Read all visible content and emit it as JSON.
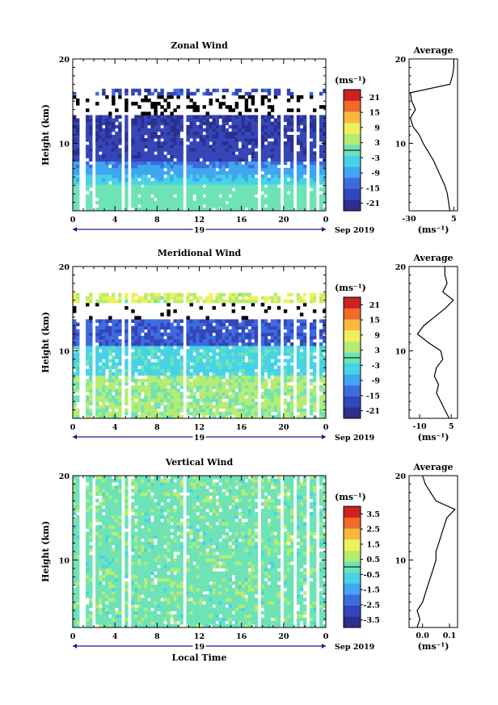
{
  "figure": {
    "date_label": "Sep 2019",
    "day_label": "19",
    "xlabel": "Local Time",
    "time_ticks": [
      "0",
      "4",
      "8",
      "12",
      "16",
      "20",
      "0"
    ],
    "height_ticks": [
      "20",
      "10"
    ],
    "ylabel": "Height (km)",
    "profile_title": "Average",
    "unit_label": "(ms⁻¹)"
  },
  "chart_data": [
    {
      "type": "heatmap",
      "title": "Zonal Wind",
      "xlabel": "",
      "ylabel": "Height (km)",
      "x_range_hours": [
        0,
        24
      ],
      "ylim_km": [
        2,
        20
      ],
      "colorbar": {
        "unit": "(ms⁻¹)",
        "ticks": [
          21,
          15,
          9,
          3,
          -3,
          -9,
          -15,
          -21
        ],
        "tick_labels": [
          "21",
          "15",
          "9",
          "3",
          "-3",
          "-9",
          "-15",
          "-21"
        ],
        "range": [
          -24,
          24
        ]
      },
      "profile": {
        "title": "Average",
        "xlabel": "(ms⁻¹)",
        "xlim": [
          -30,
          8
        ],
        "x_ticks": [
          -30,
          5
        ],
        "x_tick_labels": [
          "-30",
          "5"
        ],
        "heights_km": [
          2,
          3,
          4,
          5,
          6,
          7,
          8,
          9,
          10,
          11,
          12,
          13,
          14,
          15,
          16,
          17,
          18,
          19,
          20
        ],
        "values": [
          2,
          1,
          0,
          -2,
          -5,
          -8,
          -11,
          -15,
          -19,
          -22,
          -27,
          -29,
          -25,
          -28,
          -29,
          2,
          4,
          5,
          5
        ]
      }
    },
    {
      "type": "heatmap",
      "title": "Meridional Wind",
      "xlabel": "",
      "ylabel": "Height (km)",
      "x_range_hours": [
        0,
        24
      ],
      "ylim_km": [
        2,
        20
      ],
      "colorbar": {
        "unit": "(ms⁻¹)",
        "ticks": [
          21,
          15,
          9,
          3,
          -3,
          -9,
          -15,
          -21
        ],
        "tick_labels": [
          "21",
          "15",
          "9",
          "3",
          "-3",
          "-9",
          "-15",
          "-21"
        ],
        "range": [
          -24,
          24
        ]
      },
      "profile": {
        "title": "Average",
        "xlabel": "(ms⁻¹)",
        "xlim": [
          -15,
          8
        ],
        "x_ticks": [
          -10,
          5
        ],
        "x_tick_labels": [
          "-10",
          "5"
        ],
        "heights_km": [
          2,
          3,
          4,
          5,
          6,
          7,
          8,
          9,
          10,
          11,
          12,
          13,
          14,
          15,
          16,
          17,
          18,
          19,
          20
        ],
        "values": [
          4,
          2,
          0,
          -2,
          -1,
          -3,
          -2,
          1,
          0,
          -6,
          -11,
          -8,
          -3,
          2,
          6,
          1,
          3,
          2,
          2
        ]
      }
    },
    {
      "type": "heatmap",
      "title": "Vertical Wind",
      "xlabel": "Local Time",
      "ylabel": "Height (km)",
      "x_range_hours": [
        0,
        24
      ],
      "ylim_km": [
        2,
        20
      ],
      "colorbar": {
        "unit": "(ms⁻¹)",
        "ticks": [
          3.5,
          2.5,
          1.5,
          0.5,
          -0.5,
          -1.5,
          -2.5,
          -3.5
        ],
        "tick_labels": [
          "3.5",
          "2.5",
          "1.5",
          "0.5",
          "-0.5",
          "-1.5",
          "-2.5",
          "-3.5"
        ],
        "range": [
          -4,
          4
        ]
      },
      "profile": {
        "title": "Average",
        "xlabel": "(ms⁻¹)",
        "xlim": [
          -0.05,
          0.13
        ],
        "x_ticks": [
          0.0,
          0.1
        ],
        "x_tick_labels": [
          "0.0",
          "0.1"
        ],
        "heights_km": [
          2,
          3,
          4,
          5,
          6,
          7,
          8,
          9,
          10,
          11,
          12,
          13,
          14,
          15,
          16,
          17,
          18,
          19,
          20
        ],
        "values": [
          -0.02,
          -0.01,
          -0.02,
          0.0,
          0.01,
          0.02,
          0.03,
          0.04,
          0.05,
          0.05,
          0.06,
          0.07,
          0.08,
          0.09,
          0.12,
          0.05,
          0.03,
          0.01,
          0.0
        ]
      }
    }
  ]
}
